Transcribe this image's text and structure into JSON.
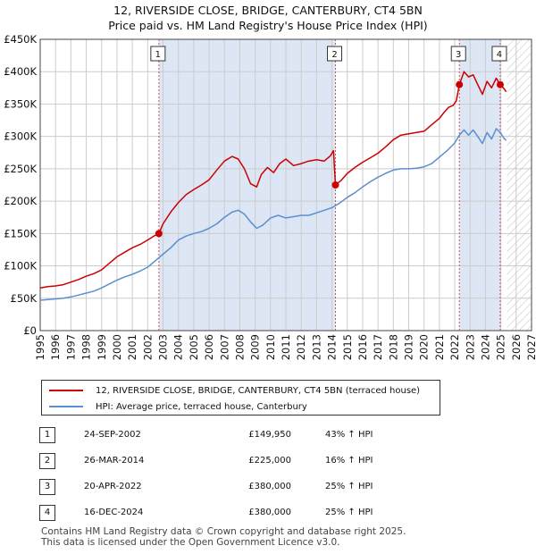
{
  "title": {
    "line1": "12, RIVERSIDE CLOSE, BRIDGE, CANTERBURY, CT4 5BN",
    "line2": "Price paid vs. HM Land Registry's House Price Index (HPI)"
  },
  "colors": {
    "property": "#cc0000",
    "hpi": "#5b8fcf",
    "shade": "#dce6f5",
    "grid": "#cccccc",
    "vline": "#d05050"
  },
  "chart_data": {
    "type": "line",
    "title": "Price paid vs. HM Land Registry's House Price Index (HPI)",
    "xlim": [
      1995,
      2027
    ],
    "ylim": [
      0,
      450000
    ],
    "x_ticks": [
      1995,
      1996,
      1997,
      1998,
      1999,
      2000,
      2001,
      2002,
      2003,
      2004,
      2005,
      2006,
      2007,
      2008,
      2009,
      2010,
      2011,
      2012,
      2013,
      2014,
      2015,
      2016,
      2017,
      2018,
      2019,
      2020,
      2021,
      2022,
      2023,
      2024,
      2025,
      2026,
      2027
    ],
    "y_ticks": [
      {
        "value": 0,
        "label": "£0"
      },
      {
        "value": 50000,
        "label": "£50K"
      },
      {
        "value": 100000,
        "label": "£100K"
      },
      {
        "value": 150000,
        "label": "£150K"
      },
      {
        "value": 200000,
        "label": "£200K"
      },
      {
        "value": 250000,
        "label": "£250K"
      },
      {
        "value": 300000,
        "label": "£300K"
      },
      {
        "value": 350000,
        "label": "£350K"
      },
      {
        "value": 400000,
        "label": "£400K"
      },
      {
        "value": 450000,
        "label": "£450K"
      }
    ],
    "shaded_ranges": [
      [
        2002.73,
        2014.23
      ],
      [
        2022.3,
        2024.96
      ]
    ],
    "forecast_start": 2025.4,
    "series": [
      {
        "name": "12, RIVERSIDE CLOSE, BRIDGE, CANTERBURY, CT4 5BN (terraced house)",
        "x": [
          1995,
          1995.5,
          1996,
          1996.5,
          1997,
          1997.5,
          1998,
          1998.5,
          1999,
          1999.5,
          2000,
          2000.5,
          2001,
          2001.5,
          2002,
          2002.4,
          2002.73,
          2003,
          2003.5,
          2004,
          2004.5,
          2005,
          2005.5,
          2006,
          2006.5,
          2007,
          2007.5,
          2007.9,
          2008.3,
          2008.7,
          2009.1,
          2009.4,
          2009.8,
          2010.2,
          2010.6,
          2011,
          2011.5,
          2012,
          2012.5,
          2013,
          2013.5,
          2013.9,
          2014.1,
          2014.23,
          2014.6,
          2015,
          2015.5,
          2016,
          2016.5,
          2017,
          2017.5,
          2018,
          2018.5,
          2019,
          2019.5,
          2020,
          2020.5,
          2021,
          2021.3,
          2021.6,
          2021.9,
          2022.1,
          2022.3,
          2022.6,
          2022.9,
          2023.2,
          2023.5,
          2023.8,
          2024.1,
          2024.4,
          2024.7,
          2024.96,
          2025.2,
          2025.35
        ],
        "values": [
          66000,
          68000,
          69000,
          71000,
          75000,
          79000,
          84000,
          88000,
          94000,
          104000,
          114000,
          121000,
          128000,
          133000,
          140000,
          146000,
          149950,
          165000,
          183000,
          198000,
          210000,
          218000,
          225000,
          233000,
          248000,
          262000,
          269000,
          265000,
          250000,
          227000,
          222000,
          241000,
          252000,
          244000,
          258000,
          265000,
          255000,
          258000,
          262000,
          264000,
          262000,
          270000,
          278000,
          225000,
          232000,
          243000,
          252000,
          260000,
          267000,
          274000,
          284000,
          295000,
          302000,
          304000,
          306000,
          308000,
          318000,
          328000,
          337000,
          345000,
          348000,
          355000,
          380000,
          400000,
          392000,
          395000,
          380000,
          365000,
          385000,
          375000,
          390000,
          380000,
          374000,
          369000
        ]
      },
      {
        "name": "HPI: Average price, terraced house, Canterbury",
        "x": [
          1995,
          1995.5,
          1996,
          1996.5,
          1997,
          1997.5,
          1998,
          1998.5,
          1999,
          1999.5,
          2000,
          2000.5,
          2001,
          2001.5,
          2002,
          2002.5,
          2003,
          2003.5,
          2004,
          2004.5,
          2005,
          2005.5,
          2006,
          2006.5,
          2007,
          2007.5,
          2007.9,
          2008.3,
          2008.7,
          2009.1,
          2009.5,
          2010,
          2010.5,
          2011,
          2011.5,
          2012,
          2012.5,
          2013,
          2013.5,
          2014,
          2014.5,
          2015,
          2015.5,
          2016,
          2016.5,
          2017,
          2017.5,
          2018,
          2018.5,
          2019,
          2019.5,
          2020,
          2020.5,
          2021,
          2021.5,
          2022,
          2022.3,
          2022.6,
          2022.9,
          2023.2,
          2023.5,
          2023.8,
          2024.1,
          2024.4,
          2024.7,
          2025,
          2025.2,
          2025.35
        ],
        "values": [
          47000,
          48000,
          49000,
          50000,
          52000,
          55000,
          58000,
          61000,
          66000,
          72000,
          78000,
          83000,
          87000,
          92000,
          98000,
          108000,
          118000,
          128000,
          140000,
          146000,
          150000,
          153000,
          158000,
          165000,
          175000,
          183000,
          186000,
          180000,
          168000,
          158000,
          163000,
          174000,
          178000,
          174000,
          176000,
          178000,
          178000,
          182000,
          186000,
          190000,
          197000,
          206000,
          213000,
          222000,
          230000,
          237000,
          243000,
          248000,
          250000,
          250000,
          251000,
          253000,
          258000,
          268000,
          278000,
          290000,
          302000,
          310000,
          302000,
          310000,
          300000,
          289000,
          306000,
          296000,
          312000,
          305000,
          297000,
          294000
        ]
      }
    ],
    "transactions": [
      {
        "num": "1",
        "x": 2002.73,
        "value": 149950,
        "date": "24-SEP-2002",
        "price": "£149,950",
        "delta": "43% ↑ HPI"
      },
      {
        "num": "2",
        "x": 2014.23,
        "value": 225000,
        "date": "26-MAR-2014",
        "price": "£225,000",
        "delta": "16% ↑ HPI"
      },
      {
        "num": "3",
        "x": 2022.3,
        "value": 380000,
        "date": "20-APR-2022",
        "price": "£380,000",
        "delta": "25% ↑ HPI"
      },
      {
        "num": "4",
        "x": 2024.96,
        "value": 380000,
        "date": "16-DEC-2024",
        "price": "£380,000",
        "delta": "25% ↑ HPI"
      }
    ]
  },
  "legend": {
    "property_label": "12, RIVERSIDE CLOSE, BRIDGE, CANTERBURY, CT4 5BN (terraced house)",
    "hpi_label": "HPI: Average price, terraced house, Canterbury"
  },
  "footer": {
    "line1": "Contains HM Land Registry data © Crown copyright and database right 2025.",
    "line2": "This data is licensed under the Open Government Licence v3.0."
  }
}
